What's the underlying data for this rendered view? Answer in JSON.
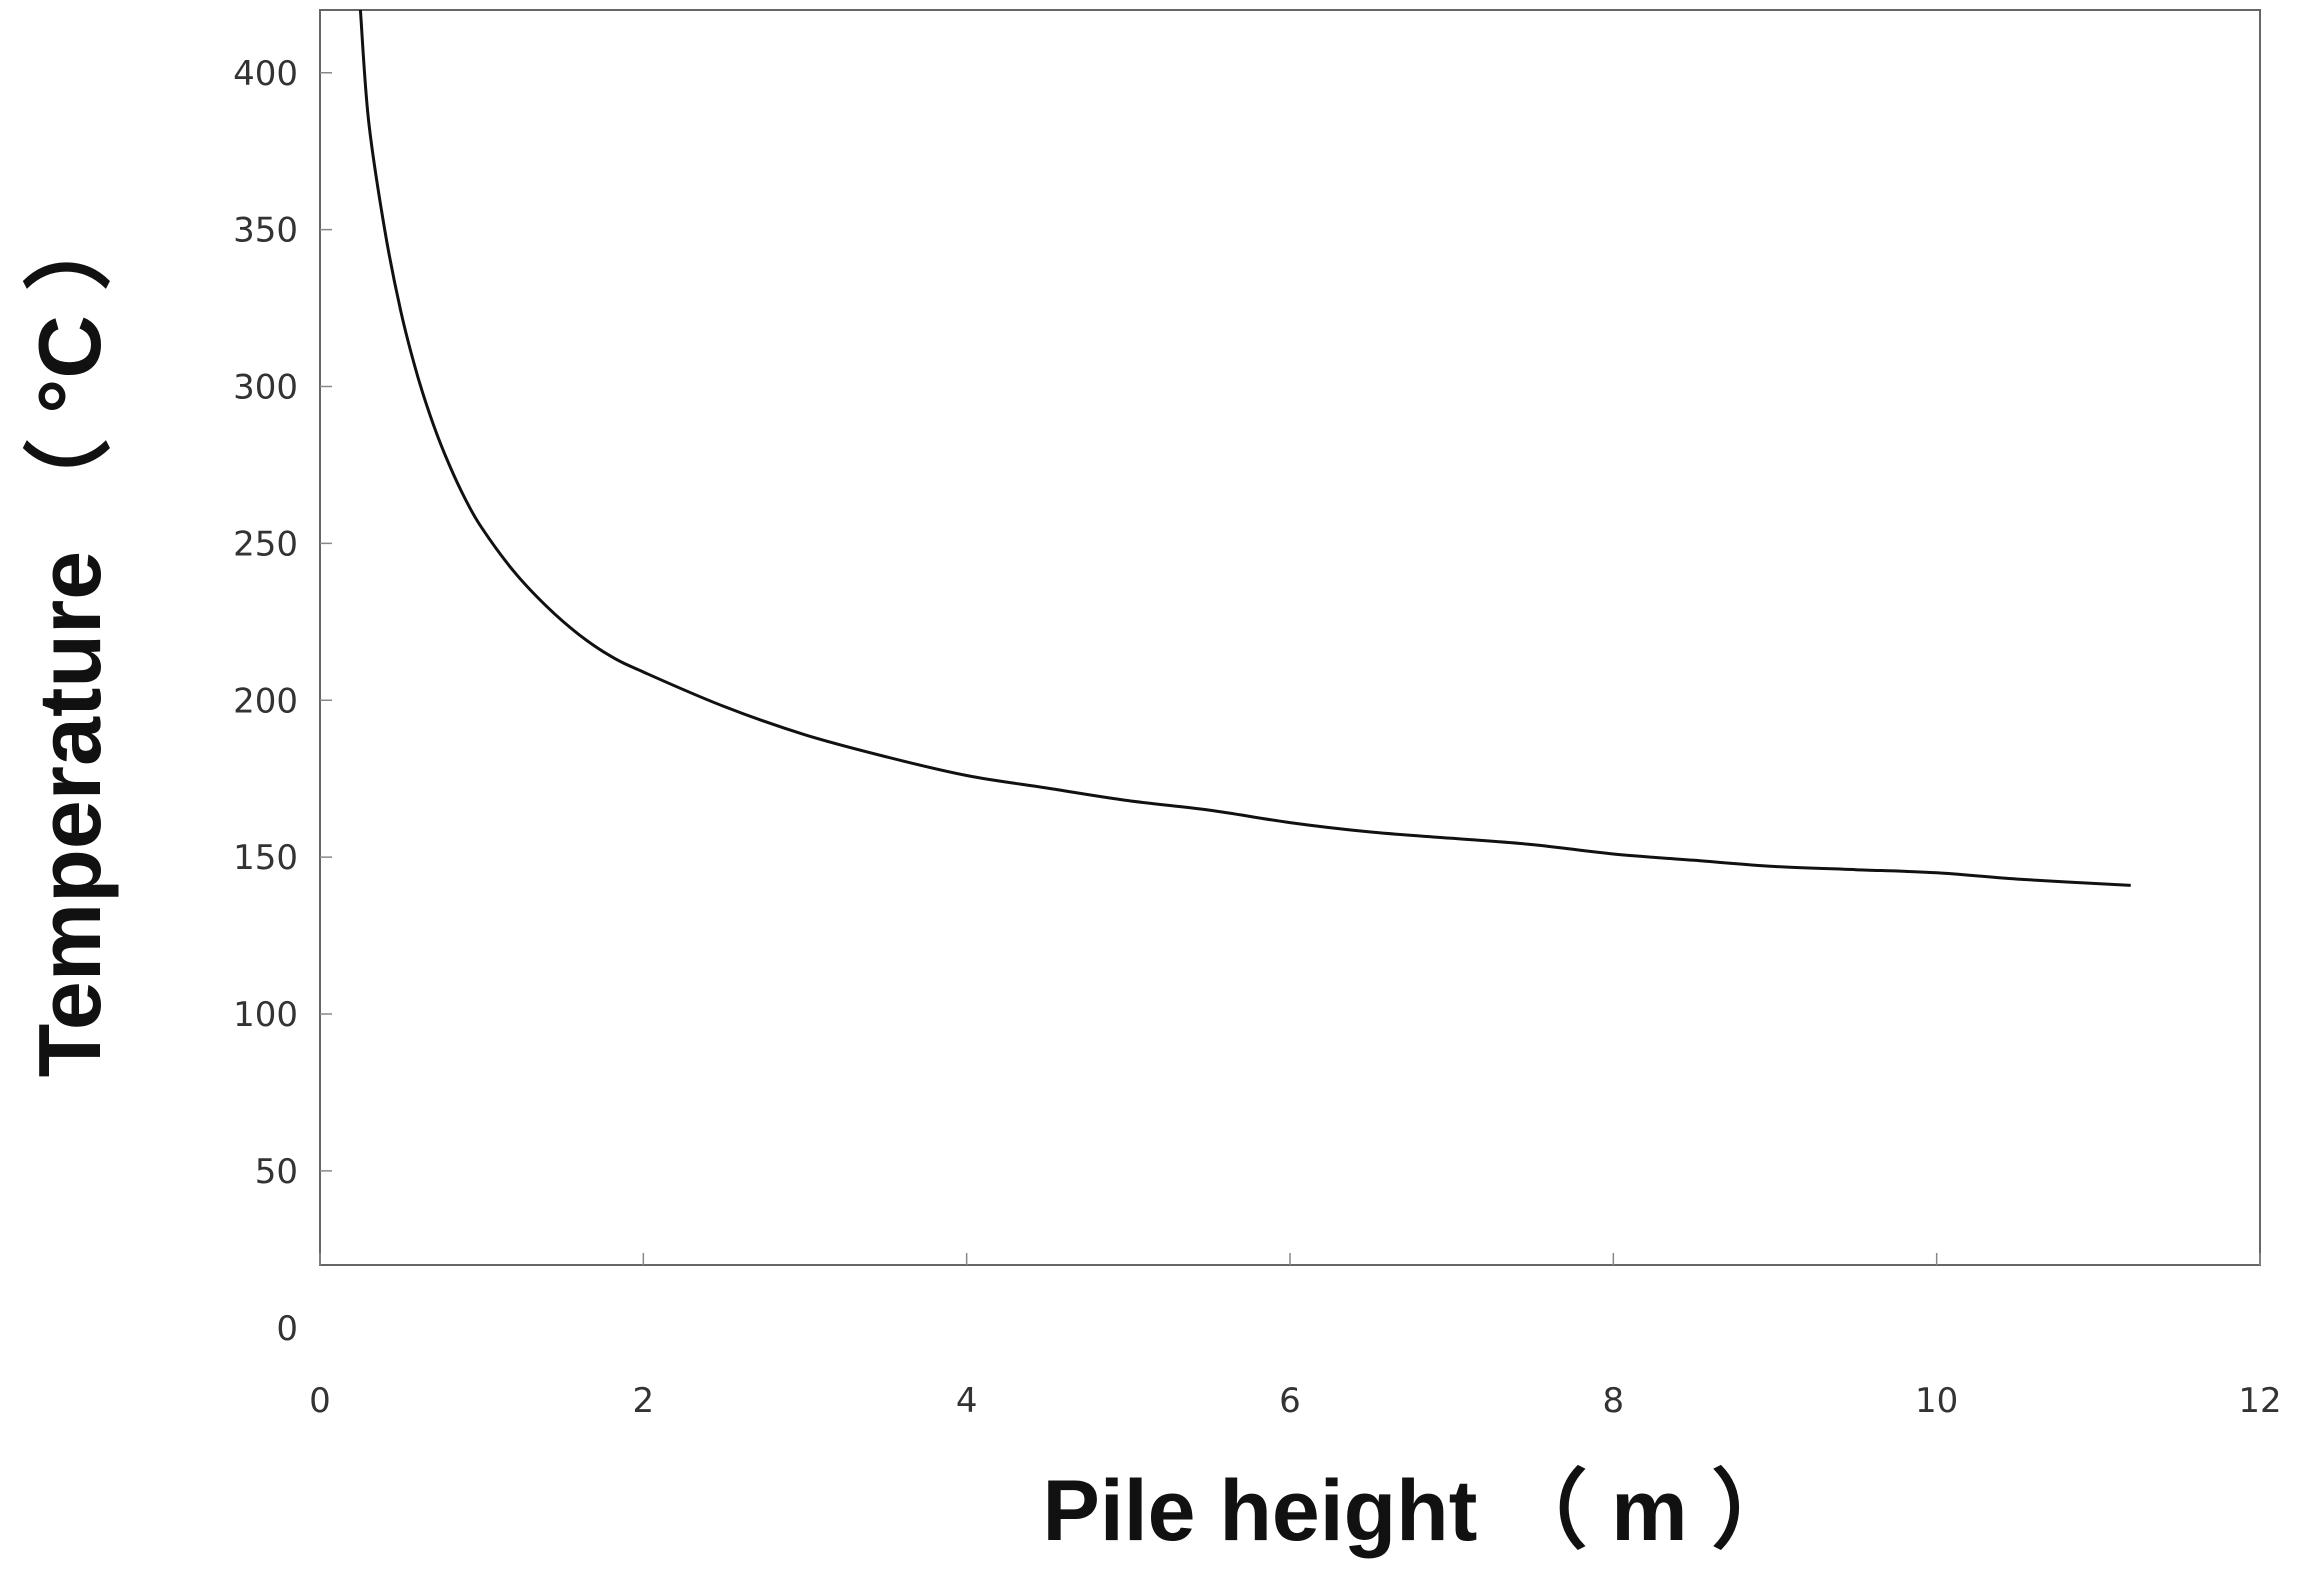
{
  "chart_data": {
    "type": "line",
    "title": "",
    "xlabel": "Pile height （ m ）",
    "ylabel": "Temperature （ °C ）",
    "xlim": [
      0,
      12
    ],
    "ylim": [
      20,
      420
    ],
    "x_ticks": [
      0,
      2,
      4,
      6,
      8,
      10,
      12
    ],
    "y_ticks": [
      0,
      50,
      100,
      150,
      200,
      250,
      300,
      350,
      400
    ],
    "grid": false,
    "legend": "none",
    "line_color": "#111111",
    "series": [
      {
        "x": [
          0.25,
          0.3,
          0.4,
          0.5,
          0.6,
          0.7,
          0.8,
          0.9,
          1.0,
          1.2,
          1.4,
          1.6,
          1.8,
          2.0,
          2.5,
          3.0,
          3.5,
          4.0,
          4.5,
          5.0,
          5.5,
          6.0,
          6.5,
          7.0,
          7.5,
          8.0,
          8.5,
          9.0,
          9.5,
          10.0,
          10.5,
          11.2
        ],
        "y": [
          420,
          385,
          350,
          324,
          304,
          288,
          275,
          264,
          255,
          241,
          230,
          221,
          214,
          209,
          198,
          189,
          182,
          176,
          172,
          168,
          165,
          161,
          158,
          156,
          154,
          151,
          149,
          147,
          146,
          145,
          143,
          141
        ]
      }
    ]
  }
}
